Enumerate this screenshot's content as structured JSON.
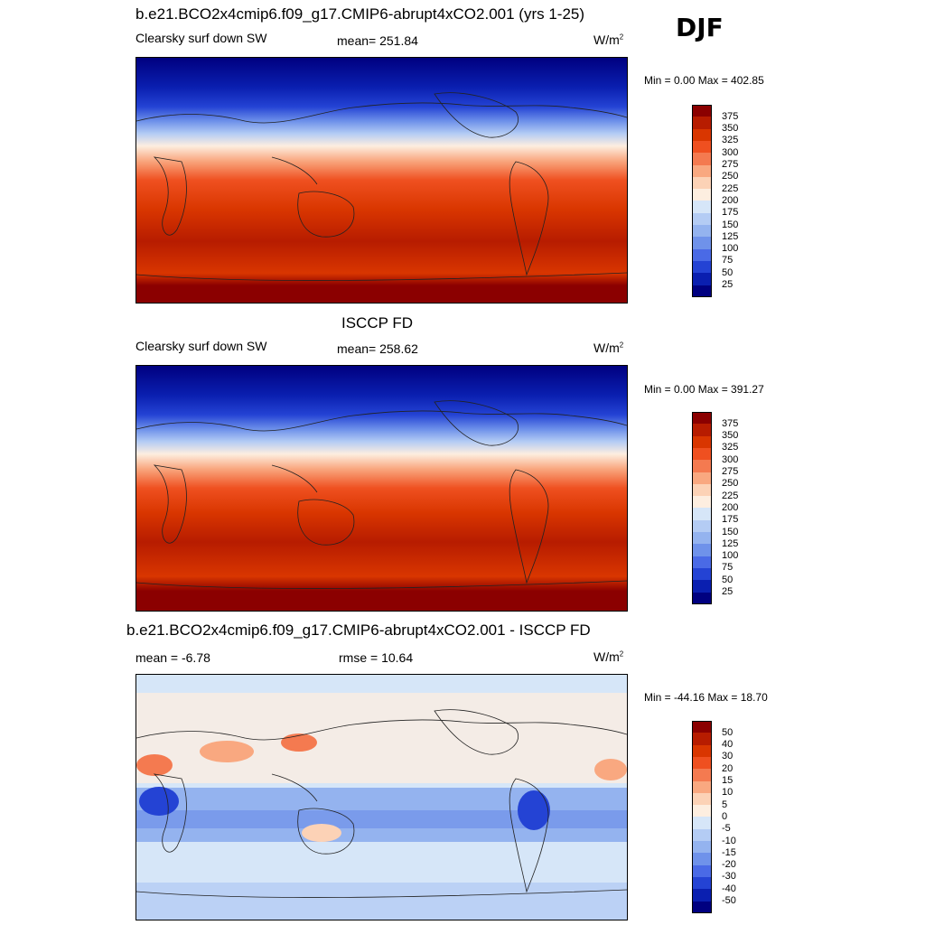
{
  "season": "DJF",
  "panels": [
    {
      "title": "b.e21.BCO2x4cmip6.f09_g17.CMIP6-abrupt4xCO2.001 (yrs 1-25)",
      "left_label": "Clearsky surf down SW",
      "center_label": "mean= 251.84",
      "units": "W/m",
      "units_sup": "2",
      "minmax": "Min =   0.00 Max = 402.85",
      "colorbar_labels": [
        "375",
        "350",
        "325",
        "300",
        "275",
        "250",
        "225",
        "200",
        "175",
        "150",
        "125",
        "100",
        "75",
        "50",
        "25"
      ],
      "colorbar_colors": [
        "#8b0000",
        "#b71c00",
        "#d93600",
        "#ef5020",
        "#f47a50",
        "#f9a880",
        "#fcd2b6",
        "#fdeee0",
        "#d6e6f8",
        "#b4ccf4",
        "#94b3ef",
        "#6f92ea",
        "#4a6ae6",
        "#2443d4",
        "#0a1fb0",
        "#000080"
      ]
    },
    {
      "title": "ISCCP FD",
      "left_label": "Clearsky surf down SW",
      "center_label": "mean= 258.62",
      "units": "W/m",
      "units_sup": "2",
      "minmax": "Min =   0.00 Max = 391.27",
      "colorbar_labels": [
        "375",
        "350",
        "325",
        "300",
        "275",
        "250",
        "225",
        "200",
        "175",
        "150",
        "125",
        "100",
        "75",
        "50",
        "25"
      ],
      "colorbar_colors": [
        "#8b0000",
        "#b71c00",
        "#d93600",
        "#ef5020",
        "#f47a50",
        "#f9a880",
        "#fcd2b6",
        "#fdeee0",
        "#d6e6f8",
        "#b4ccf4",
        "#94b3ef",
        "#6f92ea",
        "#4a6ae6",
        "#2443d4",
        "#0a1fb0",
        "#000080"
      ]
    },
    {
      "title": "b.e21.BCO2x4cmip6.f09_g17.CMIP6-abrupt4xCO2.001 - ISCCP FD",
      "left_label": "mean =  -6.78",
      "center_label": "rmse =  10.64",
      "units": "W/m",
      "units_sup": "2",
      "minmax": "Min = -44.16 Max =  18.70",
      "colorbar_labels": [
        "50",
        "40",
        "30",
        "20",
        "15",
        "10",
        "5",
        "0",
        "-5",
        "-10",
        "-15",
        "-20",
        "-30",
        "-40",
        "-50"
      ],
      "colorbar_colors": [
        "#8b0000",
        "#b71c00",
        "#d93600",
        "#ef5020",
        "#f47a50",
        "#f9a880",
        "#fcd2b6",
        "#fdeee0",
        "#d6e6f8",
        "#b4ccf4",
        "#94b3ef",
        "#6f92ea",
        "#4a6ae6",
        "#2443d4",
        "#0a1fb0",
        "#000080"
      ]
    }
  ]
}
